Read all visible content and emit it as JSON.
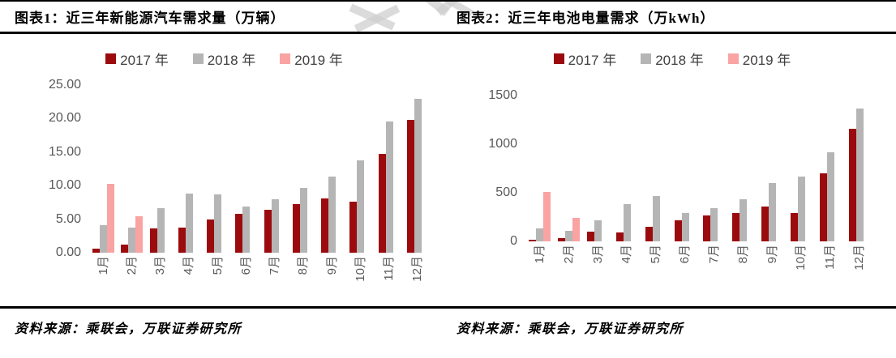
{
  "header": {
    "title_left": "图表1：近三年新能源汽车需求量（万辆）",
    "title_right": "图表2：近三年电池电量需求（万kWh）"
  },
  "footer": {
    "source_left": "资料来源：乘联会，万联证券研究所",
    "source_right": "资料来源：乘联会，万联证券研究所"
  },
  "colors": {
    "year2017": "#9b0b0e",
    "year2018": "#b5b5b5",
    "year2019": "#f9a3a3"
  },
  "chart_data": [
    {
      "type": "bar",
      "title": "图表1：近三年新能源汽车需求量（万辆）",
      "categories": [
        "1月",
        "2月",
        "3月",
        "4月",
        "5月",
        "6月",
        "7月",
        "8月",
        "9月",
        "10月",
        "11月",
        "12月"
      ],
      "series": [
        {
          "name": "2017 年",
          "color": "#9b0b0e",
          "values": [
            0.6,
            1.2,
            3.6,
            3.7,
            4.9,
            5.8,
            6.4,
            7.2,
            8.1,
            7.6,
            14.7,
            19.8
          ]
        },
        {
          "name": "2018 年",
          "color": "#b5b5b5",
          "values": [
            4.1,
            3.8,
            6.6,
            8.8,
            8.7,
            6.9,
            8.0,
            9.7,
            11.3,
            13.8,
            19.6,
            22.9
          ]
        },
        {
          "name": "2019 年",
          "color": "#f9a3a3",
          "values": [
            10.3,
            5.4,
            null,
            null,
            null,
            null,
            null,
            null,
            null,
            null,
            null,
            null
          ]
        }
      ],
      "ylim": [
        0,
        25
      ],
      "yticks": [
        "0.00",
        "5.00",
        "10.00",
        "15.00",
        "20.00",
        "25.00"
      ],
      "legend_position": "top",
      "grid": false,
      "source": "资料来源：乘联会，万联证券研究所"
    },
    {
      "type": "bar",
      "title": "图表2：近三年电池电量需求（万kWh）",
      "categories": [
        "1月",
        "2月",
        "3月",
        "4月",
        "5月",
        "6月",
        "7月",
        "8月",
        "9月",
        "10月",
        "11月",
        "12月"
      ],
      "series": [
        {
          "name": "2017 年",
          "color": "#9b0b0e",
          "values": [
            15,
            30,
            100,
            90,
            150,
            215,
            265,
            290,
            355,
            290,
            700,
            1155
          ]
        },
        {
          "name": "2018 年",
          "color": "#b5b5b5",
          "values": [
            130,
            110,
            215,
            385,
            465,
            290,
            340,
            430,
            600,
            670,
            920,
            1370
          ]
        },
        {
          "name": "2019 年",
          "color": "#f9a3a3",
          "values": [
            505,
            240,
            null,
            null,
            null,
            null,
            null,
            null,
            null,
            null,
            null,
            null
          ]
        }
      ],
      "ylim": [
        0,
        1500
      ],
      "yticks": [
        "0",
        "500",
        "1000",
        "1500"
      ],
      "legend_position": "top",
      "grid": false,
      "source": "资料来源：乘联会，万联证券研究所"
    }
  ]
}
